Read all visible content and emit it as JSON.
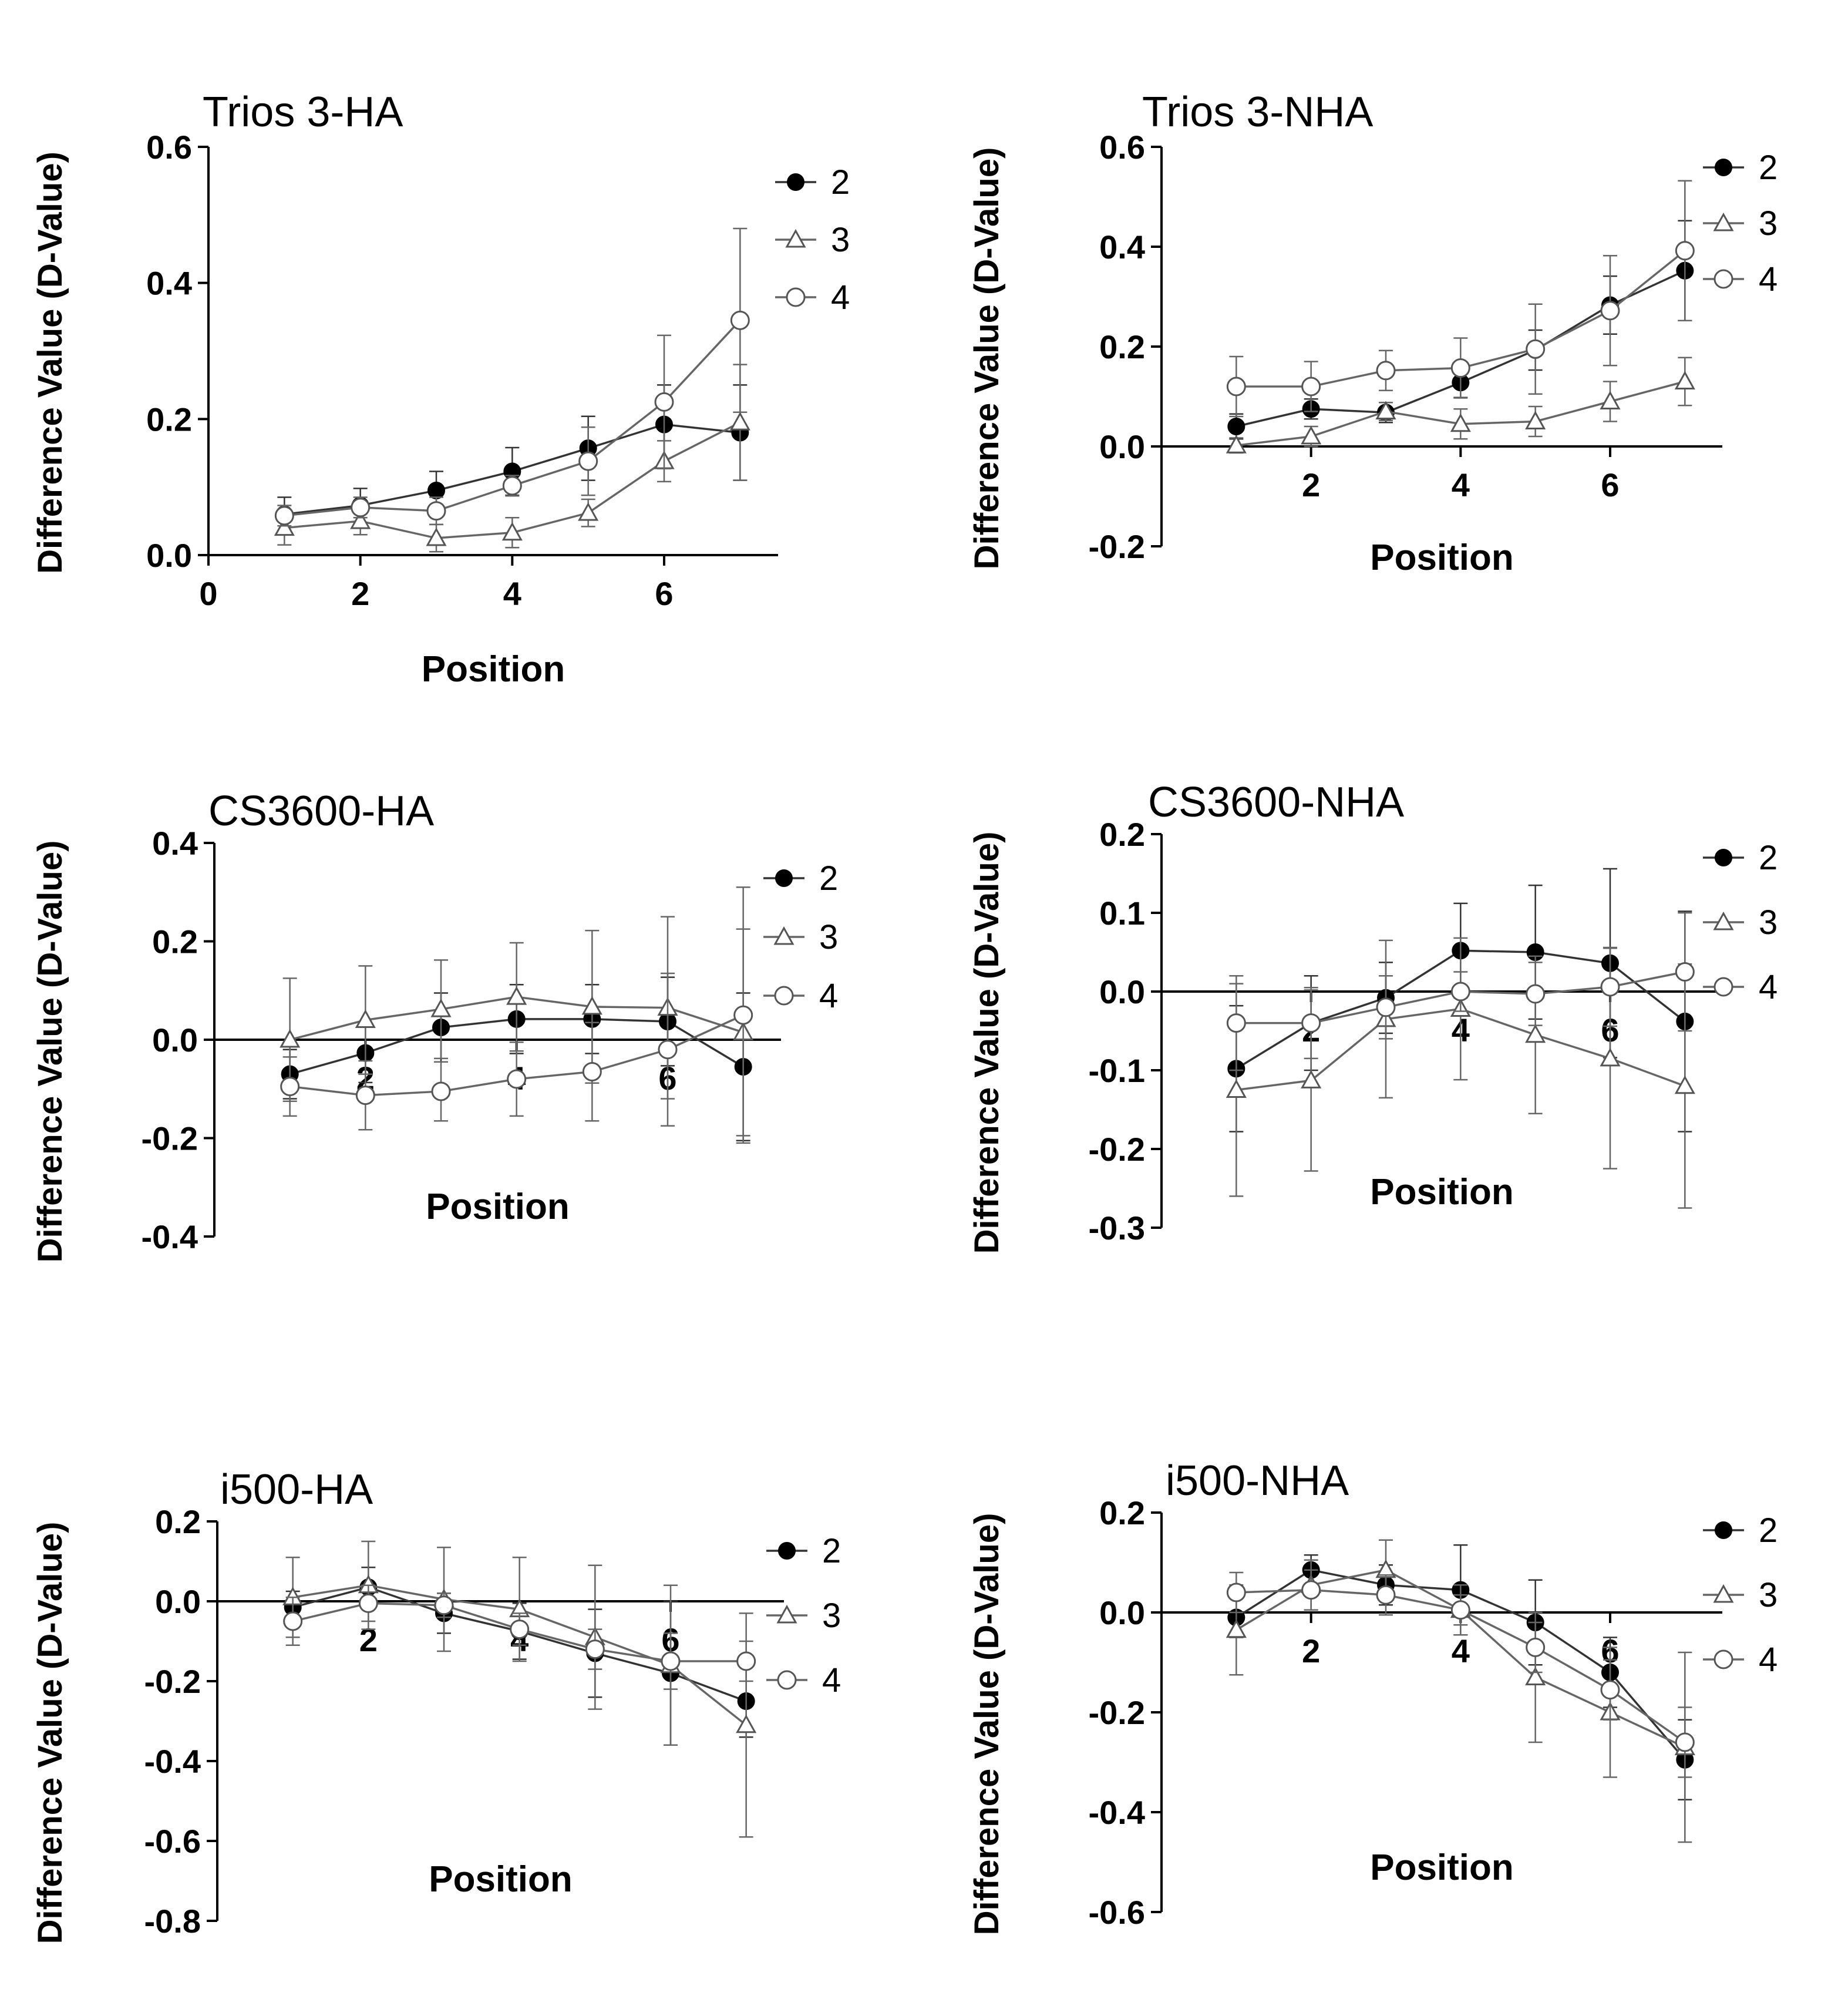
{
  "chart_data": [
    {
      "type": "line",
      "title": "Trios 3-HA",
      "xlabel": "Position",
      "ylabel": "Difference Value (D-Value)",
      "xlim": [
        0,
        7.5
      ],
      "ylim": [
        0,
        0.6
      ],
      "yticks": [
        "0.0",
        "0.2",
        "0.4",
        "0.6"
      ],
      "xticks": [
        "0",
        "2",
        "4",
        "6"
      ],
      "x": [
        1,
        2,
        3,
        4,
        5,
        6,
        7
      ],
      "series": [
        {
          "name": "2",
          "values": [
            0.06,
            0.073,
            0.095,
            0.123,
            0.157,
            0.192,
            0.18
          ],
          "errors": [
            0.025,
            0.025,
            0.028,
            0.035,
            0.047,
            0.058,
            0.07
          ]
        },
        {
          "name": "3",
          "values": [
            0.04,
            0.05,
            0.025,
            0.033,
            0.062,
            0.138,
            0.195
          ],
          "errors": [
            0.025,
            0.02,
            0.02,
            0.022,
            0.02,
            0.03,
            0.085
          ]
        },
        {
          "name": "4",
          "values": [
            0.058,
            0.07,
            0.065,
            0.102,
            0.138,
            0.225,
            0.345
          ],
          "errors": [
            0.015,
            0.015,
            0.02,
            0.015,
            0.05,
            0.098,
            0.135
          ]
        }
      ]
    },
    {
      "type": "line",
      "title": "Trios 3-NHA",
      "xlabel": "Position",
      "ylabel": "Difference Value (D-Value)",
      "xlim": [
        0,
        7.5
      ],
      "ylim": [
        -0.2,
        0.6
      ],
      "yticks": [
        "-0.2",
        "0.0",
        "0.2",
        "0.4",
        "0.6"
      ],
      "xticks": [
        "2",
        "4",
        "6"
      ],
      "x": [
        1,
        2,
        3,
        4,
        5,
        6,
        7
      ],
      "series": [
        {
          "name": "2",
          "values": [
            0.04,
            0.075,
            0.068,
            0.128,
            0.193,
            0.283,
            0.352
          ],
          "errors": [
            0.025,
            0.02,
            0.02,
            0.03,
            0.04,
            0.058,
            0.1
          ]
        },
        {
          "name": "3",
          "values": [
            0.002,
            0.02,
            0.07,
            0.045,
            0.05,
            0.09,
            0.13
          ],
          "errors": [
            0.015,
            0.02,
            0.018,
            0.03,
            0.03,
            0.04,
            0.048
          ]
        },
        {
          "name": "4",
          "values": [
            0.12,
            0.12,
            0.152,
            0.157,
            0.195,
            0.272,
            0.392
          ],
          "errors": [
            0.06,
            0.05,
            0.04,
            0.06,
            0.09,
            0.11,
            0.14
          ]
        }
      ]
    },
    {
      "type": "line",
      "title": "CS3600-HA",
      "xlabel": "Position",
      "ylabel": "Difference Value (D-Value)",
      "xlim": [
        0,
        7.5
      ],
      "ylim": [
        -0.4,
        0.4
      ],
      "yticks": [
        "-0.4",
        "-0.2",
        "0.0",
        "0.2",
        "0.4"
      ],
      "xticks": [
        "2",
        "4",
        "6"
      ],
      "x": [
        1,
        2,
        3,
        4,
        5,
        6,
        7
      ],
      "series": [
        {
          "name": "2",
          "values": [
            -0.07,
            -0.027,
            0.025,
            0.042,
            0.042,
            0.037,
            -0.055
          ],
          "errors": [
            0.05,
            0.06,
            0.07,
            0.07,
            0.07,
            0.09,
            0.15
          ]
        },
        {
          "name": "3",
          "values": [
            0.0,
            0.04,
            0.062,
            0.087,
            0.067,
            0.065,
            0.015
          ],
          "errors": [
            0.125,
            0.11,
            0.1,
            0.11,
            0.155,
            0.185,
            0.21
          ]
        },
        {
          "name": "4",
          "values": [
            -0.095,
            -0.113,
            -0.105,
            -0.08,
            -0.065,
            -0.02,
            0.05
          ],
          "errors": [
            0.06,
            0.07,
            0.06,
            0.075,
            0.1,
            0.155,
            0.26
          ]
        }
      ]
    },
    {
      "type": "line",
      "title": "CS3600-NHA",
      "xlabel": "Position",
      "ylabel": "Difference Value (D-Value)",
      "xlim": [
        0,
        7.5
      ],
      "ylim": [
        -0.3,
        0.2
      ],
      "yticks": [
        "-0.3",
        "-0.2",
        "-0.1",
        "0.0",
        "0.1",
        "0.2"
      ],
      "xticks": [
        "2",
        "4",
        "6"
      ],
      "x": [
        1,
        2,
        3,
        4,
        5,
        6,
        7
      ],
      "series": [
        {
          "name": "2",
          "values": [
            -0.098,
            -0.04,
            -0.008,
            0.052,
            0.05,
            0.036,
            -0.038
          ],
          "errors": [
            0.08,
            0.06,
            0.045,
            0.06,
            0.085,
            0.12,
            0.14
          ]
        },
        {
          "name": "3",
          "values": [
            -0.125,
            -0.113,
            -0.035,
            -0.022,
            -0.055,
            -0.085,
            -0.12
          ],
          "errors": [
            0.135,
            0.115,
            0.1,
            0.09,
            0.1,
            0.14,
            0.155
          ]
        },
        {
          "name": "4",
          "values": [
            -0.04,
            -0.04,
            -0.02,
            0.0,
            -0.003,
            0.006,
            0.025
          ],
          "errors": [
            0.06,
            0.045,
            0.04,
            0.025,
            0.04,
            0.05,
            0.075
          ]
        }
      ]
    },
    {
      "type": "line",
      "title": "i500-HA",
      "xlabel": "Position",
      "ylabel": "Difference Value (D-Value)",
      "xlim": [
        0,
        7.5
      ],
      "ylim": [
        -0.8,
        0.2
      ],
      "yticks": [
        "-0.8",
        "-0.6",
        "-0.4",
        "-0.2",
        "0.0",
        "0.2"
      ],
      "xticks": [
        "2",
        "4",
        "6"
      ],
      "x": [
        1,
        2,
        3,
        4,
        5,
        6,
        7
      ],
      "series": [
        {
          "name": "2",
          "values": [
            -0.015,
            0.035,
            -0.03,
            -0.075,
            -0.13,
            -0.18,
            -0.25
          ],
          "errors": [
            0.04,
            0.05,
            0.05,
            0.07,
            0.11,
            0.18,
            0.09
          ]
        },
        {
          "name": "3",
          "values": [
            0.01,
            0.04,
            0.005,
            -0.02,
            -0.09,
            -0.16,
            -0.31
          ],
          "errors": [
            0.1,
            0.11,
            0.13,
            0.13,
            0.18,
            0.2,
            0.28
          ]
        },
        {
          "name": "4",
          "values": [
            -0.05,
            -0.005,
            -0.01,
            -0.07,
            -0.12,
            -0.15,
            -0.15
          ],
          "errors": [
            0.06,
            0.045,
            0.03,
            0.04,
            0.05,
            0.07,
            0.05
          ]
        }
      ]
    },
    {
      "type": "line",
      "title": "i500-NHA",
      "xlabel": "Position",
      "ylabel": "Difference Value (D-Value)",
      "xlim": [
        0,
        7.5
      ],
      "ylim": [
        -0.6,
        0.2
      ],
      "yticks": [
        "-0.6",
        "-0.4",
        "-0.2",
        "0.0",
        "0.2"
      ],
      "xticks": [
        "2",
        "4",
        "6"
      ],
      "x": [
        1,
        2,
        3,
        4,
        5,
        6,
        7
      ],
      "series": [
        {
          "name": "2",
          "values": [
            -0.01,
            0.085,
            0.055,
            0.045,
            -0.02,
            -0.12,
            -0.295
          ],
          "errors": [
            0.04,
            0.03,
            0.04,
            0.09,
            0.085,
            0.07,
            0.08
          ]
        },
        {
          "name": "3",
          "values": [
            -0.035,
            0.055,
            0.085,
            0.005,
            -0.13,
            -0.2,
            -0.27
          ],
          "errors": [
            0.09,
            0.05,
            0.06,
            0.05,
            0.13,
            0.13,
            0.19
          ]
        },
        {
          "name": "4",
          "values": [
            0.04,
            0.045,
            0.035,
            0.005,
            -0.07,
            -0.155,
            -0.26
          ],
          "errors": [
            0.04,
            0.04,
            0.04,
            0.03,
            0.05,
            0.06,
            0.07
          ]
        }
      ]
    }
  ]
}
